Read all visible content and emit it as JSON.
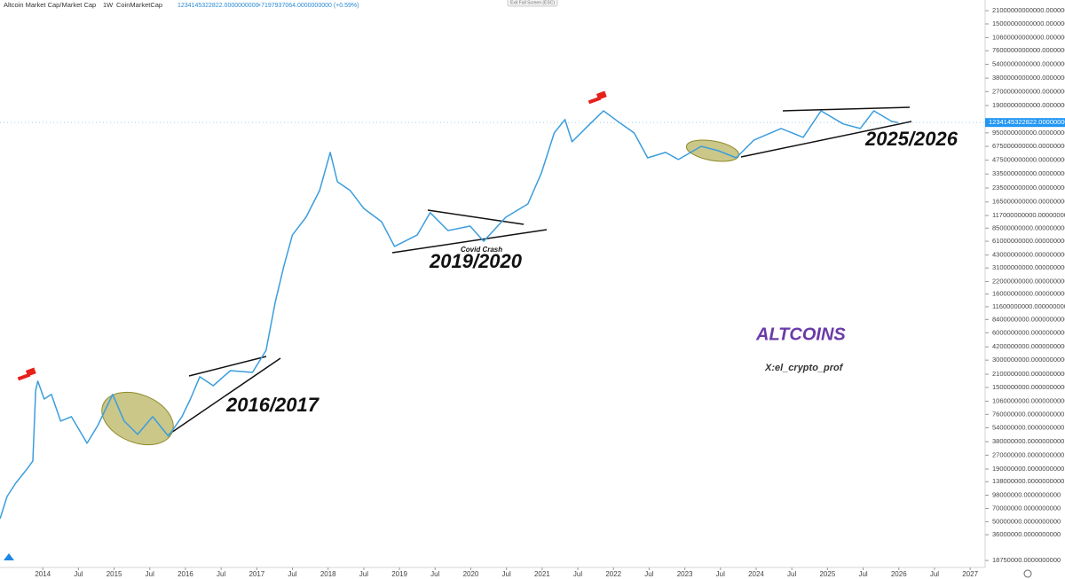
{
  "chart_data": {
    "type": "line",
    "title": "Altcoin Market Cap/Market Cap",
    "interval": "1W",
    "source": "CoinMarketCap",
    "last_value": 1234145322822,
    "last_value_label": "1234145322822.0000000000",
    "change_label": "+7197937064.0000000000 (+0.59%)",
    "button": "Exit Full Screen (ESC)",
    "log_scale": true,
    "grid": false,
    "series": [
      {
        "name": "Altcoin Market Cap",
        "color": "#3b9ddd",
        "x": [
          2013.4,
          2013.5,
          2013.62,
          2013.77,
          2013.86,
          2013.9,
          2013.93,
          2014.02,
          2014.12,
          2014.25,
          2014.4,
          2014.62,
          2014.77,
          2014.98,
          2015.14,
          2015.33,
          2015.54,
          2015.76,
          2015.95,
          2016.07,
          2016.2,
          2016.39,
          2016.63,
          2016.94,
          2017.13,
          2017.26,
          2017.38,
          2017.5,
          2017.69,
          2017.88,
          2018.03,
          2018.13,
          2018.31,
          2018.5,
          2018.75,
          2018.93,
          2019.25,
          2019.43,
          2019.68,
          2019.99,
          2020.18,
          2020.49,
          2020.8,
          2020.99,
          2021.17,
          2021.32,
          2021.42,
          2021.67,
          2021.86,
          2022.11,
          2022.29,
          2022.48,
          2022.73,
          2022.91,
          2023.23,
          2023.47,
          2023.72,
          2023.97,
          2024.35,
          2024.66,
          2024.91,
          2025.22,
          2025.46,
          2025.65,
          2025.9,
          2025.99
        ],
        "values": [
          54000000,
          95000000,
          133000000,
          186000000,
          233000000,
          1400000000,
          1760000000,
          1120000000,
          1260000000,
          640000000,
          716000000,
          365000000,
          571000000,
          1260000000,
          640000000,
          457000000,
          716000000,
          437000000,
          716000000,
          1120000000,
          1970000000,
          1570000000,
          2300000000,
          2200000000,
          3850000000,
          13300000000,
          32600000000,
          71600000000,
          112000000000,
          220000000000,
          578000000000,
          275000000000,
          220000000000,
          140000000000,
          100000000000,
          53500000000,
          71600000000,
          126000000000,
          80000000000,
          89500000000,
          61000000000,
          112000000000,
          157000000000,
          345000000000,
          949000000000,
          1330000000000,
          757000000000,
          1190000000000,
          1660000000000,
          1190000000000,
          949000000000,
          505000000000,
          578000000000,
          483000000000,
          676000000000,
          604000000000,
          505000000000,
          793000000000,
          1060000000000,
          847000000000,
          1660000000000,
          1190000000000,
          1060000000000,
          1660000000000,
          1270000000000,
          1234000000000
        ]
      }
    ],
    "xlim": [
      2013.4,
      2027.21
    ],
    "xticks": [
      2014,
      {
        "value": 2014.5,
        "label": "Jul"
      },
      2015,
      {
        "value": 2015.5,
        "label": "Jul"
      },
      2016,
      {
        "value": 2016.5,
        "label": "Jul"
      },
      2017,
      {
        "value": 2017.5,
        "label": "Jul"
      },
      2018,
      {
        "value": 2018.5,
        "label": "Jul"
      },
      2019,
      {
        "value": 2019.5,
        "label": "Jul"
      },
      2020,
      {
        "value": 2020.5,
        "label": "Jul"
      },
      2021,
      {
        "value": 2021.5,
        "label": "Jul"
      },
      2022,
      {
        "value": 2022.5,
        "label": "Jul"
      },
      2023,
      {
        "value": 2023.5,
        "label": "Jul"
      },
      2024,
      {
        "value": 2024.5,
        "label": "Jul"
      },
      2025,
      {
        "value": 2025.5,
        "label": "Jul"
      },
      2026,
      {
        "value": 2026.5,
        "label": "Jul"
      },
      2027
    ],
    "ylim": [
      15700000,
      27500000000000
    ],
    "yticks": [
      {
        "value": 21000000000000,
        "label": "21000000000000.0000000000"
      },
      {
        "value": 15000000000000,
        "label": "15000000000000.0000000000"
      },
      {
        "value": 10600000000000,
        "label": "10600000000000.0000000000"
      },
      {
        "value": 7600000000000,
        "label": "7600000000000.0000000000"
      },
      {
        "value": 5400000000000,
        "label": "5400000000000.0000000000"
      },
      {
        "value": 3800000000000,
        "label": "3800000000000.0000000000"
      },
      {
        "value": 2700000000000,
        "label": "2700000000000.0000000000"
      },
      {
        "value": 1900000000000,
        "label": "1900000000000.0000000000"
      },
      {
        "value": 950000000000,
        "label": "950000000000.0000000000"
      },
      {
        "value": 675000000000,
        "label": "675000000000.0000000000"
      },
      {
        "value": 475000000000,
        "label": "475000000000.0000000000"
      },
      {
        "value": 335000000000,
        "label": "335000000000.0000000000"
      },
      {
        "value": 235000000000,
        "label": "235000000000.0000000000"
      },
      {
        "value": 165000000000,
        "label": "165000000000.0000000000"
      },
      {
        "value": 117000000000,
        "label": "117000000000.0000000000"
      },
      {
        "value": 85000000000,
        "label": "85000000000.0000000000"
      },
      {
        "value": 61000000000,
        "label": "61000000000.0000000000"
      },
      {
        "value": 43000000000,
        "label": "43000000000.0000000000"
      },
      {
        "value": 31000000000,
        "label": "31000000000.0000000000"
      },
      {
        "value": 22000000000,
        "label": "22000000000.0000000000"
      },
      {
        "value": 16000000000,
        "label": "16000000000.0000000000"
      },
      {
        "value": 11600000000,
        "label": "11600000000.0000000000"
      },
      {
        "value": 8400000000,
        "label": "8400000000.0000000000"
      },
      {
        "value": 6000000000,
        "label": "6000000000.0000000000"
      },
      {
        "value": 4200000000,
        "label": "4200000000.0000000000"
      },
      {
        "value": 3000000000,
        "label": "3000000000.0000000000"
      },
      {
        "value": 2100000000,
        "label": "2100000000.0000000000"
      },
      {
        "value": 1500000000,
        "label": "1500000000.0000000000"
      },
      {
        "value": 1060000000,
        "label": "1060000000.0000000000"
      },
      {
        "value": 760000000,
        "label": "760000000.0000000000"
      },
      {
        "value": 540000000,
        "label": "540000000.0000000000"
      },
      {
        "value": 380000000,
        "label": "380000000.0000000000"
      },
      {
        "value": 270000000,
        "label": "270000000.0000000000"
      },
      {
        "value": 190000000,
        "label": "190000000.0000000000"
      },
      {
        "value": 138000000,
        "label": "138000000.0000000000"
      },
      {
        "value": 98000000,
        "label": "98000000.0000000000"
      },
      {
        "value": 70000000,
        "label": "70000000.0000000000"
      },
      {
        "value": 50000000,
        "label": "50000000.0000000000"
      },
      {
        "value": 36000000,
        "label": "36000000.0000000000"
      },
      {
        "value": 18750000,
        "label": "18750000.0000000000"
      }
    ],
    "annotations": [
      {
        "text": "2016/2017"
      },
      {
        "text": "2019/2020"
      },
      {
        "text": "Covid Crash"
      },
      {
        "text": "2025/2026"
      },
      {
        "text": "ALTCOINS"
      },
      {
        "text": "X:el_crypto_prof"
      }
    ]
  }
}
